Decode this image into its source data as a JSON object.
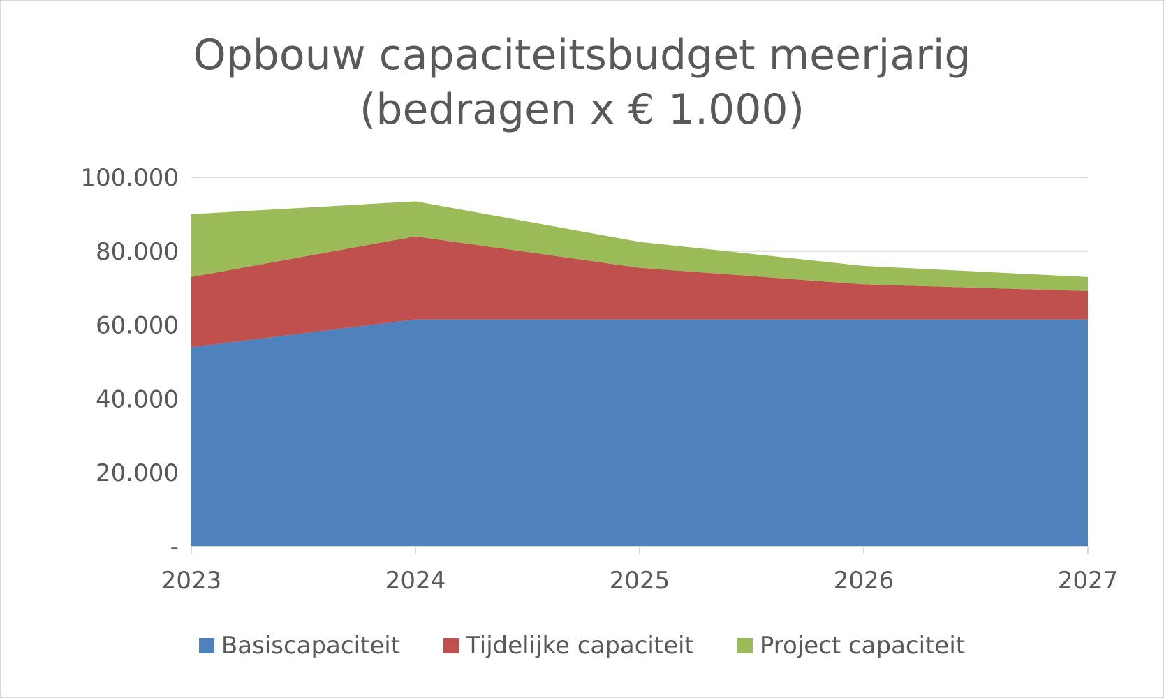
{
  "chart_data": {
    "type": "area",
    "stacked": true,
    "title": "Opbouw capaciteitsbudget meerjarig",
    "subtitle": "(bedragen x € 1.000)",
    "categories": [
      "2023",
      "2024",
      "2025",
      "2026",
      "2027"
    ],
    "series": [
      {
        "name": "Basiscapaciteit",
        "color": "#4f81bd",
        "values": [
          54000,
          61500,
          61500,
          61500,
          61500
        ]
      },
      {
        "name": "Tijdelijke capaciteit",
        "color": "#c0504d",
        "values": [
          19000,
          22500,
          14000,
          9500,
          7700
        ]
      },
      {
        "name": "Project capaciteit",
        "color": "#9bbb59",
        "values": [
          17000,
          9500,
          7000,
          5000,
          3800
        ]
      }
    ],
    "ylim": [
      0,
      100000
    ],
    "yticks": [
      0,
      20000,
      40000,
      60000,
      80000,
      100000
    ],
    "ytick_labels": [
      "-",
      "20.000",
      "40.000",
      "60.000",
      "80.000",
      "100.000"
    ],
    "xlabel": "",
    "ylabel": "",
    "grid": true,
    "legend_position": "bottom"
  }
}
